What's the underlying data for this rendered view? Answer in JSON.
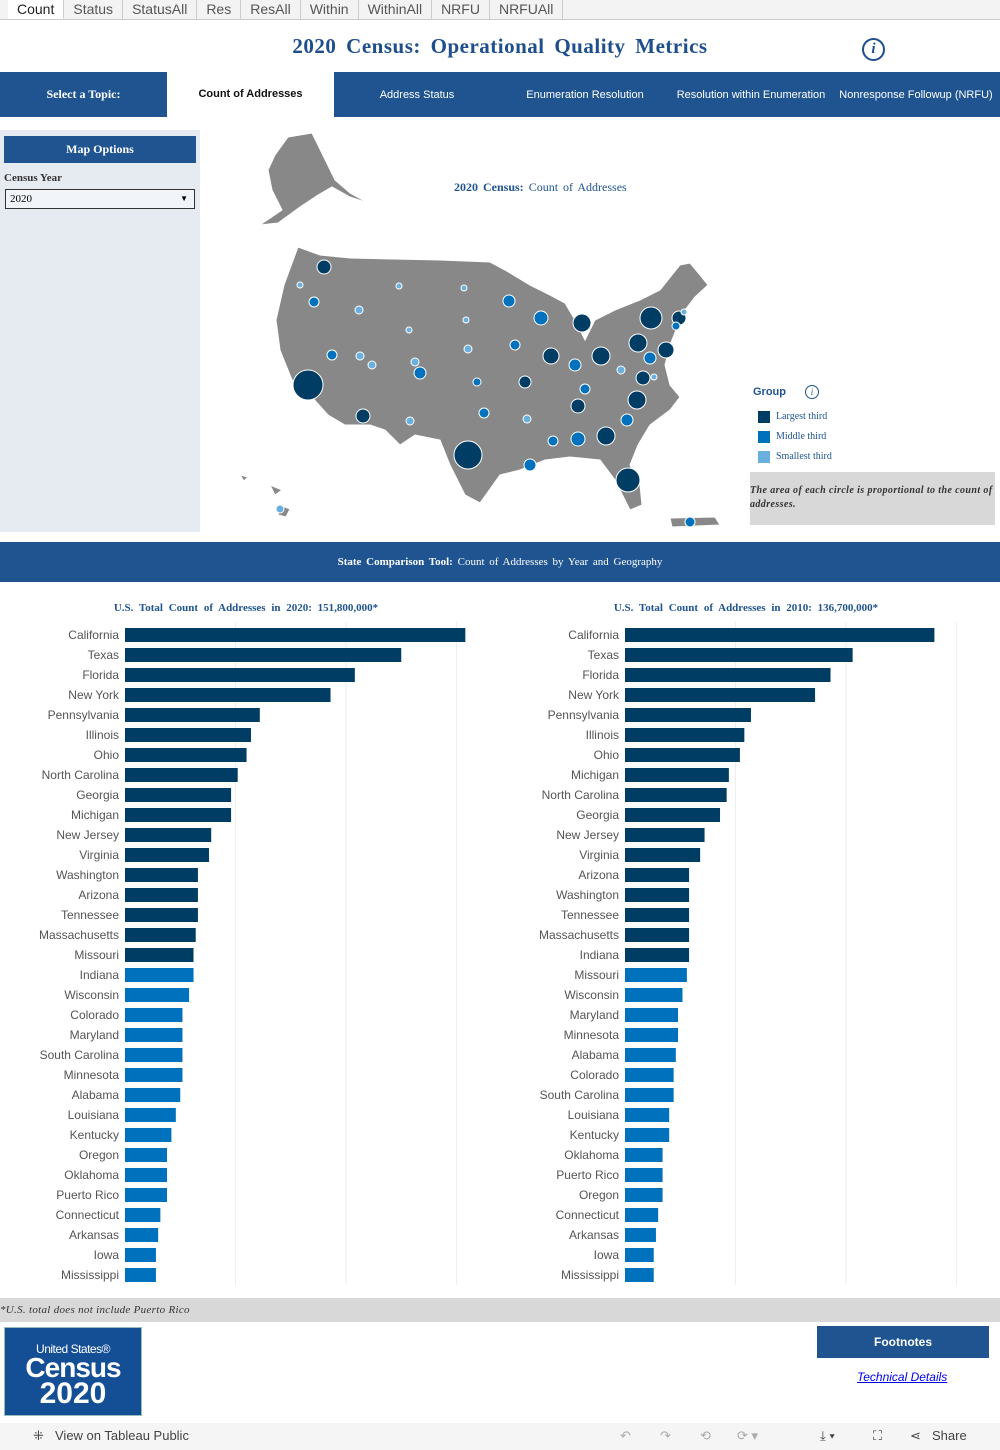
{
  "sheet_tabs": [
    "Count",
    "Status",
    "StatusAll",
    "Res",
    "ResAll",
    "Within",
    "WithinAll",
    "NRFU",
    "NRFUAll"
  ],
  "title": "2020 Census: Operational Quality Metrics",
  "topics": {
    "select_label": "Select a Topic:",
    "items": [
      "Count of Addresses",
      "Address Status",
      "Enumeration Resolution",
      "Resolution within Enumeration",
      "Nonresponse Followup (NRFU)"
    ],
    "active": 0
  },
  "map_options": {
    "header": "Map Options",
    "census_year_label": "Census Year",
    "census_year_value": "2020"
  },
  "map": {
    "title_bold": "2020 Census:",
    "title_rest": "Count of Addresses",
    "legend_title": "Group",
    "legend": [
      {
        "label": "Largest third",
        "color": "#003d64"
      },
      {
        "label": "Middle third",
        "color": "#0071bc"
      },
      {
        "label": "Smallest third",
        "color": "#6ab0de"
      }
    ],
    "note": "The area of each circle is proportional to the count of addresses."
  },
  "comparison_bar": {
    "bold": "State Comparison Tool:",
    "rest": "Count of Addresses by Year and Geography"
  },
  "chart_data": [
    {
      "type": "bar",
      "orientation": "horizontal",
      "title": "U.S. Total Count of Addresses in 2020: 151,800,000*",
      "xlim": [
        0,
        15500000
      ],
      "grid": true,
      "categories": [
        "California",
        "Texas",
        "Florida",
        "New York",
        "Pennsylvania",
        "Illinois",
        "Ohio",
        "North Carolina",
        "Georgia",
        "Michigan",
        "New Jersey",
        "Virginia",
        "Washington",
        "Arizona",
        "Tennessee",
        "Massachusetts",
        "Missouri",
        "Indiana",
        "Wisconsin",
        "Colorado",
        "Maryland",
        "South Carolina",
        "Minnesota",
        "Alabama",
        "Louisiana",
        "Kentucky",
        "Oregon",
        "Oklahoma",
        "Puerto Rico",
        "Connecticut",
        "Arkansas",
        "Iowa",
        "Mississippi"
      ],
      "values": [
        15400000,
        12500000,
        10400000,
        9300000,
        6100000,
        5700000,
        5500000,
        5100000,
        4800000,
        4800000,
        3900000,
        3800000,
        3300000,
        3300000,
        3300000,
        3200000,
        3100000,
        3100000,
        2900000,
        2600000,
        2600000,
        2600000,
        2600000,
        2500000,
        2300000,
        2100000,
        1900000,
        1900000,
        1900000,
        1600000,
        1500000,
        1400000,
        1400000
      ],
      "groups": [
        "L",
        "L",
        "L",
        "L",
        "L",
        "L",
        "L",
        "L",
        "L",
        "L",
        "L",
        "L",
        "L",
        "L",
        "L",
        "L",
        "L",
        "M",
        "M",
        "M",
        "M",
        "M",
        "M",
        "M",
        "M",
        "M",
        "M",
        "M",
        "M",
        "M",
        "M",
        "M",
        "M"
      ]
    },
    {
      "type": "bar",
      "orientation": "horizontal",
      "title": "U.S. Total Count of Addresses in 2010: 136,700,000*",
      "xlim": [
        0,
        15500000
      ],
      "grid": true,
      "categories": [
        "California",
        "Texas",
        "Florida",
        "New York",
        "Pennsylvania",
        "Illinois",
        "Ohio",
        "Michigan",
        "North Carolina",
        "Georgia",
        "New Jersey",
        "Virginia",
        "Arizona",
        "Washington",
        "Tennessee",
        "Massachusetts",
        "Indiana",
        "Missouri",
        "Wisconsin",
        "Maryland",
        "Minnesota",
        "Alabama",
        "Colorado",
        "South Carolina",
        "Louisiana",
        "Kentucky",
        "Oklahoma",
        "Puerto Rico",
        "Oregon",
        "Connecticut",
        "Arkansas",
        "Iowa",
        "Mississippi"
      ],
      "values": [
        14000000,
        10300000,
        9300000,
        8600000,
        5700000,
        5400000,
        5200000,
        4700000,
        4600000,
        4300000,
        3600000,
        3400000,
        2900000,
        2900000,
        2900000,
        2900000,
        2900000,
        2800000,
        2600000,
        2400000,
        2400000,
        2300000,
        2200000,
        2200000,
        2000000,
        2000000,
        1700000,
        1700000,
        1700000,
        1500000,
        1400000,
        1300000,
        1300000
      ],
      "groups": [
        "L",
        "L",
        "L",
        "L",
        "L",
        "L",
        "L",
        "L",
        "L",
        "L",
        "L",
        "L",
        "L",
        "L",
        "L",
        "L",
        "L",
        "M",
        "M",
        "M",
        "M",
        "M",
        "M",
        "M",
        "M",
        "M",
        "M",
        "M",
        "M",
        "M",
        "M",
        "M",
        "M"
      ]
    }
  ],
  "footnote": "*U.S. total does not include Puerto Rico",
  "logo": {
    "line1": "United States®",
    "line2": "Census",
    "line3": "2020"
  },
  "footnotes_button": "Footnotes",
  "technical_details": "Technical Details",
  "toolbar": {
    "view_on": "View on Tableau Public",
    "share": "Share"
  }
}
